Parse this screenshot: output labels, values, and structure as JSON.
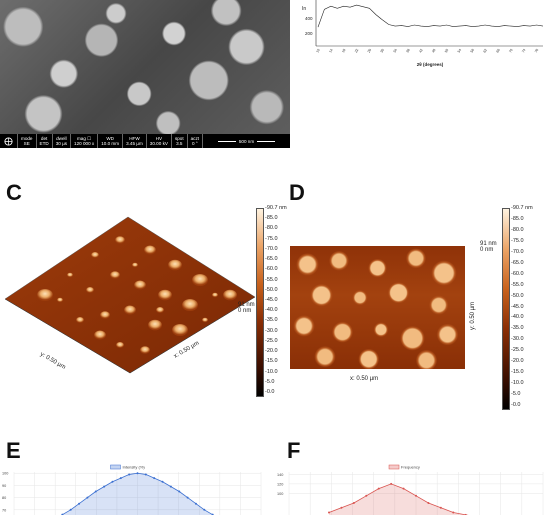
{
  "sem": {
    "info": [
      {
        "head": "mode",
        "val": "SE"
      },
      {
        "head": "det",
        "val": "ETD"
      },
      {
        "head": "dwell",
        "val": "30 µs"
      },
      {
        "head": "mag ☐",
        "val": "120 000 x"
      },
      {
        "head": "WD",
        "val": "10.0 mm"
      },
      {
        "head": "HFW",
        "val": "3.45 µm"
      },
      {
        "head": "HV",
        "val": "30.00 kV"
      },
      {
        "head": "spot",
        "val": "3.5"
      },
      {
        "head": "aczt",
        "val": "0 °"
      }
    ],
    "scale": "500 nm"
  },
  "xrd": {
    "xlabel": "2θ (degrees)",
    "ylabel": "In",
    "yticks": [
      "400",
      "200"
    ]
  },
  "panel_c": {
    "letter": "C",
    "x_axis": "x: 0.50 µm",
    "y_axis": "y: 0.50 µm",
    "z_label": "91 nm\n0 nm",
    "colorbar": [
      "90.7 nm",
      "85.0",
      "80.0",
      "75.0",
      "70.0",
      "65.0",
      "60.0",
      "55.0",
      "50.0",
      "45.0",
      "40.0",
      "35.0",
      "30.0",
      "25.0",
      "20.0",
      "15.0",
      "10.0",
      "5.0",
      "0.0"
    ]
  },
  "panel_d": {
    "letter": "D",
    "x_axis": "x: 0.50 µm",
    "y_axis": "y: 0.50 µm",
    "z_label": "91 nm\n0 nm",
    "colorbar": [
      "90.7 nm",
      "85.0",
      "80.0",
      "75.0",
      "70.0",
      "65.0",
      "60.0",
      "55.0",
      "50.0",
      "45.0",
      "40.0",
      "35.0",
      "30.0",
      "25.0",
      "20.0",
      "15.0",
      "10.0",
      "5.0",
      "0.0"
    ]
  },
  "panel_e": {
    "letter": "E",
    "legend": "Intensity (%)",
    "color": "#3a6fd1"
  },
  "panel_f": {
    "letter": "F",
    "legend": "Frequency",
    "color": "#d9534f"
  },
  "chart_data": [
    {
      "type": "line",
      "title": "",
      "xlabel": "2θ (degrees)",
      "ylabel": "In",
      "yticks": [
        400,
        200
      ],
      "x": [
        10,
        12,
        14,
        16,
        18,
        20,
        22,
        24,
        26,
        28,
        30,
        32,
        34,
        36,
        38,
        40,
        42,
        44,
        46,
        48,
        50,
        52,
        54,
        56,
        58,
        60,
        62,
        64,
        66,
        68,
        70,
        72,
        74,
        76,
        78,
        80
      ],
      "values": [
        180,
        350,
        380,
        360,
        380,
        370,
        390,
        375,
        360,
        300,
        250,
        205,
        190,
        195,
        185,
        200,
        190,
        185,
        195,
        190,
        200,
        185,
        190,
        195,
        185,
        190,
        200,
        190,
        185,
        195,
        190,
        185,
        195,
        190,
        200,
        190
      ]
    },
    {
      "type": "area",
      "legend": "Intensity (%)",
      "y_ticks": [
        100,
        90,
        80,
        70
      ],
      "x": [
        0,
        1,
        2,
        3,
        4,
        5,
        6,
        7,
        8,
        9,
        10,
        11,
        12,
        13,
        14,
        15,
        16,
        17,
        18,
        19,
        20
      ],
      "values": [
        62,
        66,
        70,
        75,
        80,
        85,
        89,
        93,
        96,
        99,
        100,
        99,
        96,
        93,
        89,
        85,
        80,
        75,
        70,
        66,
        62
      ]
    },
    {
      "type": "area",
      "legend": "Frequency",
      "y_ticks": [
        140,
        120,
        100
      ],
      "x": [
        0,
        1,
        2,
        3,
        4,
        5,
        6,
        7,
        8,
        9,
        10,
        11,
        12,
        13,
        14
      ],
      "values": [
        60,
        70,
        80,
        95,
        110,
        120,
        110,
        95,
        80,
        70,
        60,
        55,
        50,
        45,
        40
      ]
    }
  ]
}
